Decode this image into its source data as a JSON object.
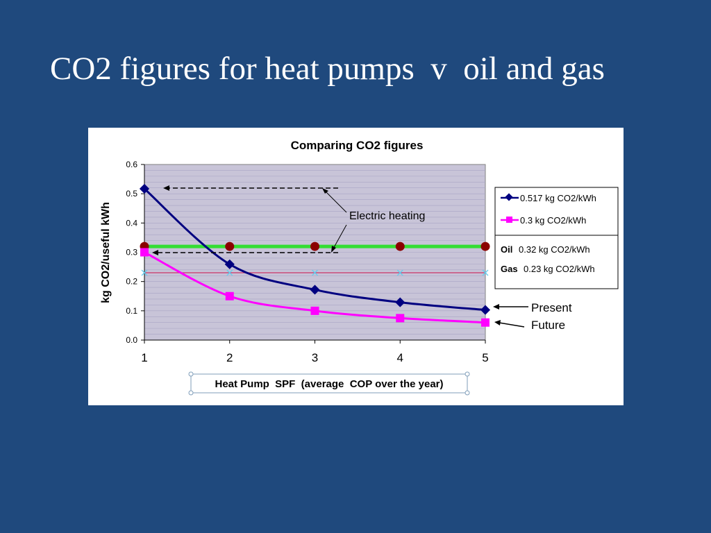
{
  "slide": {
    "title": "CO2 figures for heat pumps  v  oil and gas"
  },
  "chart_data": {
    "type": "line",
    "title": "Comparing  CO2 figures",
    "xlabel": "Heat Pump  SPF  (average  COP over the year)",
    "ylabel": "kg CO2/useful kWh",
    "x": [
      1,
      2,
      3,
      4,
      5
    ],
    "xlim": [
      1,
      5
    ],
    "ylim": [
      0,
      0.6
    ],
    "x_ticks": [
      "1",
      "2",
      "3",
      "4",
      "5"
    ],
    "y_ticks": [
      "0.0",
      "0.1",
      "0.2",
      "0.3",
      "0.4",
      "0.5",
      "0.6"
    ],
    "grid": true,
    "legend_position": "right",
    "series": [
      {
        "name": "0.517 kg CO2/kWh",
        "values": [
          0.517,
          0.259,
          0.172,
          0.129,
          0.103
        ],
        "color": "#000080",
        "marker": "diamond",
        "curve": "smooth"
      },
      {
        "name": "0.3 kg CO2/kWh",
        "values": [
          0.3,
          0.15,
          0.1,
          0.075,
          0.06
        ],
        "color": "#ff00ff",
        "marker": "square",
        "curve": "smooth"
      }
    ],
    "reference_lines": [
      {
        "label": "Oil",
        "name": "0.32 kg CO2/kWh",
        "value": 0.32,
        "color": "#33dd33",
        "marker": "circle",
        "marker_color": "#8b0000"
      },
      {
        "label": "Gas",
        "name": "0.23 kg CO2/kWh",
        "value": 0.23,
        "color": "#cc3366",
        "marker": "x",
        "marker_color": "#66ccee"
      }
    ],
    "annotations": {
      "electric_heating": "Electric heating",
      "present": "Present",
      "future": "Future"
    },
    "colors": {
      "plot_background": "#c8c4d8",
      "gridline": "#a8a4c4"
    }
  }
}
